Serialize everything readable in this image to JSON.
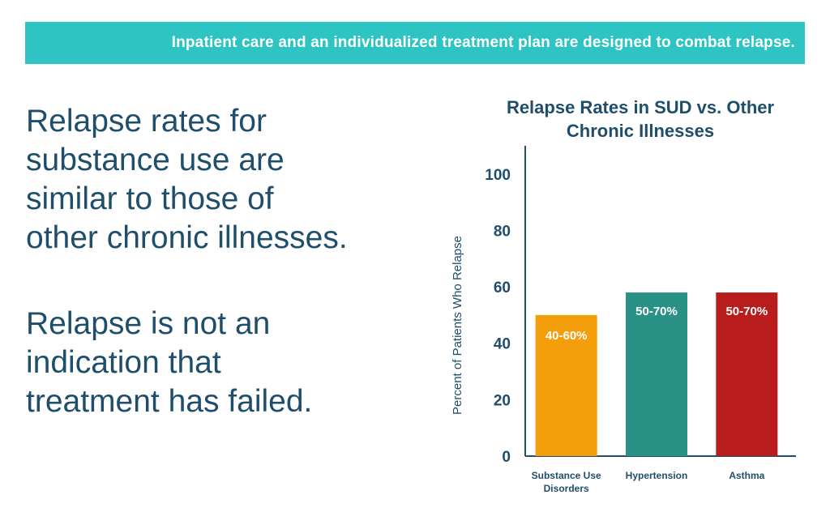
{
  "banner": {
    "text": "Inpatient care and an individualized treatment plan are designed to combat relapse."
  },
  "statements": [
    {
      "lines": [
        "Relapse rates for",
        "substance use are",
        "similar to those of",
        "other chronic illnesses."
      ]
    },
    {
      "lines": [
        "Relapse is not an",
        "indication that",
        "treatment has failed."
      ]
    }
  ],
  "chart_data": {
    "type": "bar",
    "title_lines": [
      "Relapse Rates in SUD vs. Other",
      "Chronic Illnesses"
    ],
    "ylabel": "Percent of Patients Who Relapse",
    "xlabel": "",
    "ylim": [
      0,
      110
    ],
    "yticks": [
      0,
      20,
      40,
      60,
      80,
      100
    ],
    "grid": false,
    "categories": [
      {
        "lines": [
          "Substance Use",
          "Disorders"
        ]
      },
      {
        "lines": [
          "Hypertension"
        ]
      },
      {
        "lines": [
          "Asthma"
        ]
      }
    ],
    "values": [
      50,
      58,
      58
    ],
    "data_labels": [
      "40-60%",
      "50-70%",
      "50-70%"
    ],
    "colors": [
      "#f59e0b",
      "#2a9186",
      "#b91c1c"
    ]
  },
  "colors": {
    "banner": "#2ec4c4",
    "text": "#1f4e6b",
    "axis": "#1f4e6b"
  }
}
